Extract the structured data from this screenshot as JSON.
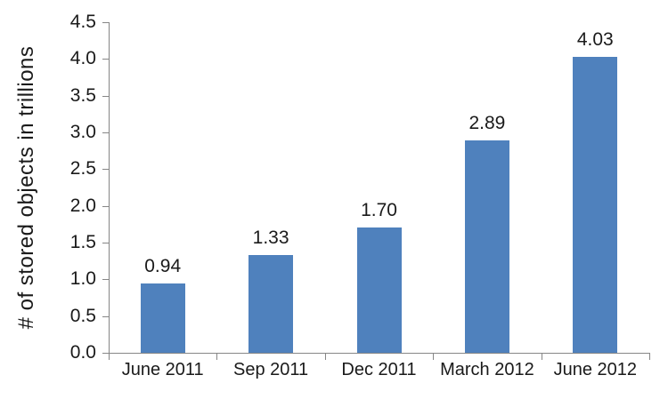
{
  "chart_data": {
    "type": "bar",
    "title": "",
    "xlabel": "",
    "ylabel": "# of stored objects in trillions",
    "categories": [
      "June 2011",
      "Sep 2011",
      "Dec 2011",
      "March 2012",
      "June 2012"
    ],
    "values": [
      0.94,
      1.33,
      1.7,
      2.89,
      4.03
    ],
    "value_labels": [
      "0.94",
      "1.33",
      "1.70",
      "2.89",
      "4.03"
    ],
    "ylim": [
      0,
      4.5
    ],
    "ytick_step": 0.5,
    "ytick_labels": [
      "0.0",
      "0.5",
      "1.0",
      "1.5",
      "2.0",
      "2.5",
      "3.0",
      "3.5",
      "4.0",
      "4.5"
    ],
    "grid": false,
    "legend": false,
    "colors": {
      "bar": "#4F81BD",
      "axis": "#868686",
      "text": "#1a1a1a",
      "background": "#FFFFFF"
    }
  }
}
